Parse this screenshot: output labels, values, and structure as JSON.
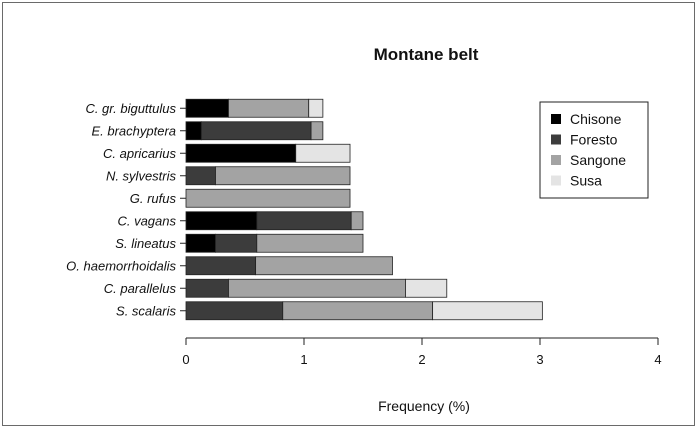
{
  "chart_data": {
    "type": "bar",
    "orientation": "horizontal",
    "stacked": true,
    "title": "Montane belt",
    "xlabel": "Frequency (%)",
    "ylabel": "",
    "xlim": [
      0,
      4
    ],
    "xticks": [
      "0",
      "1",
      "2",
      "3",
      "4"
    ],
    "grid": false,
    "legend_position": "top-right",
    "categories": [
      "S. scalaris",
      "C. parallelus",
      "O. haemorrhoidalis",
      "S. lineatus",
      "C. vagans",
      "G. rufus",
      "N. sylvestris",
      "C. apricarius",
      "E. brachyptera",
      "C. gr. biguttulus"
    ],
    "series": [
      {
        "name": "Chisone",
        "color": "#000000",
        "values": [
          0,
          0,
          0,
          0.25,
          0.6,
          0,
          0,
          0.93,
          0.13,
          0.36
        ]
      },
      {
        "name": "Foresto",
        "color": "#3c3c3c",
        "values": [
          0.82,
          0.36,
          0.59,
          0.35,
          0.8,
          0,
          0.25,
          0,
          0.93,
          0
        ]
      },
      {
        "name": "Sangone",
        "color": "#a3a3a3",
        "values": [
          1.27,
          1.5,
          1.16,
          0.9,
          0.1,
          1.39,
          1.14,
          0,
          0.1,
          0.68
        ]
      },
      {
        "name": "Susa",
        "color": "#e4e4e4",
        "values": [
          0.93,
          0.35,
          0,
          0,
          0,
          0,
          0,
          0.46,
          0,
          0.12
        ]
      }
    ]
  }
}
